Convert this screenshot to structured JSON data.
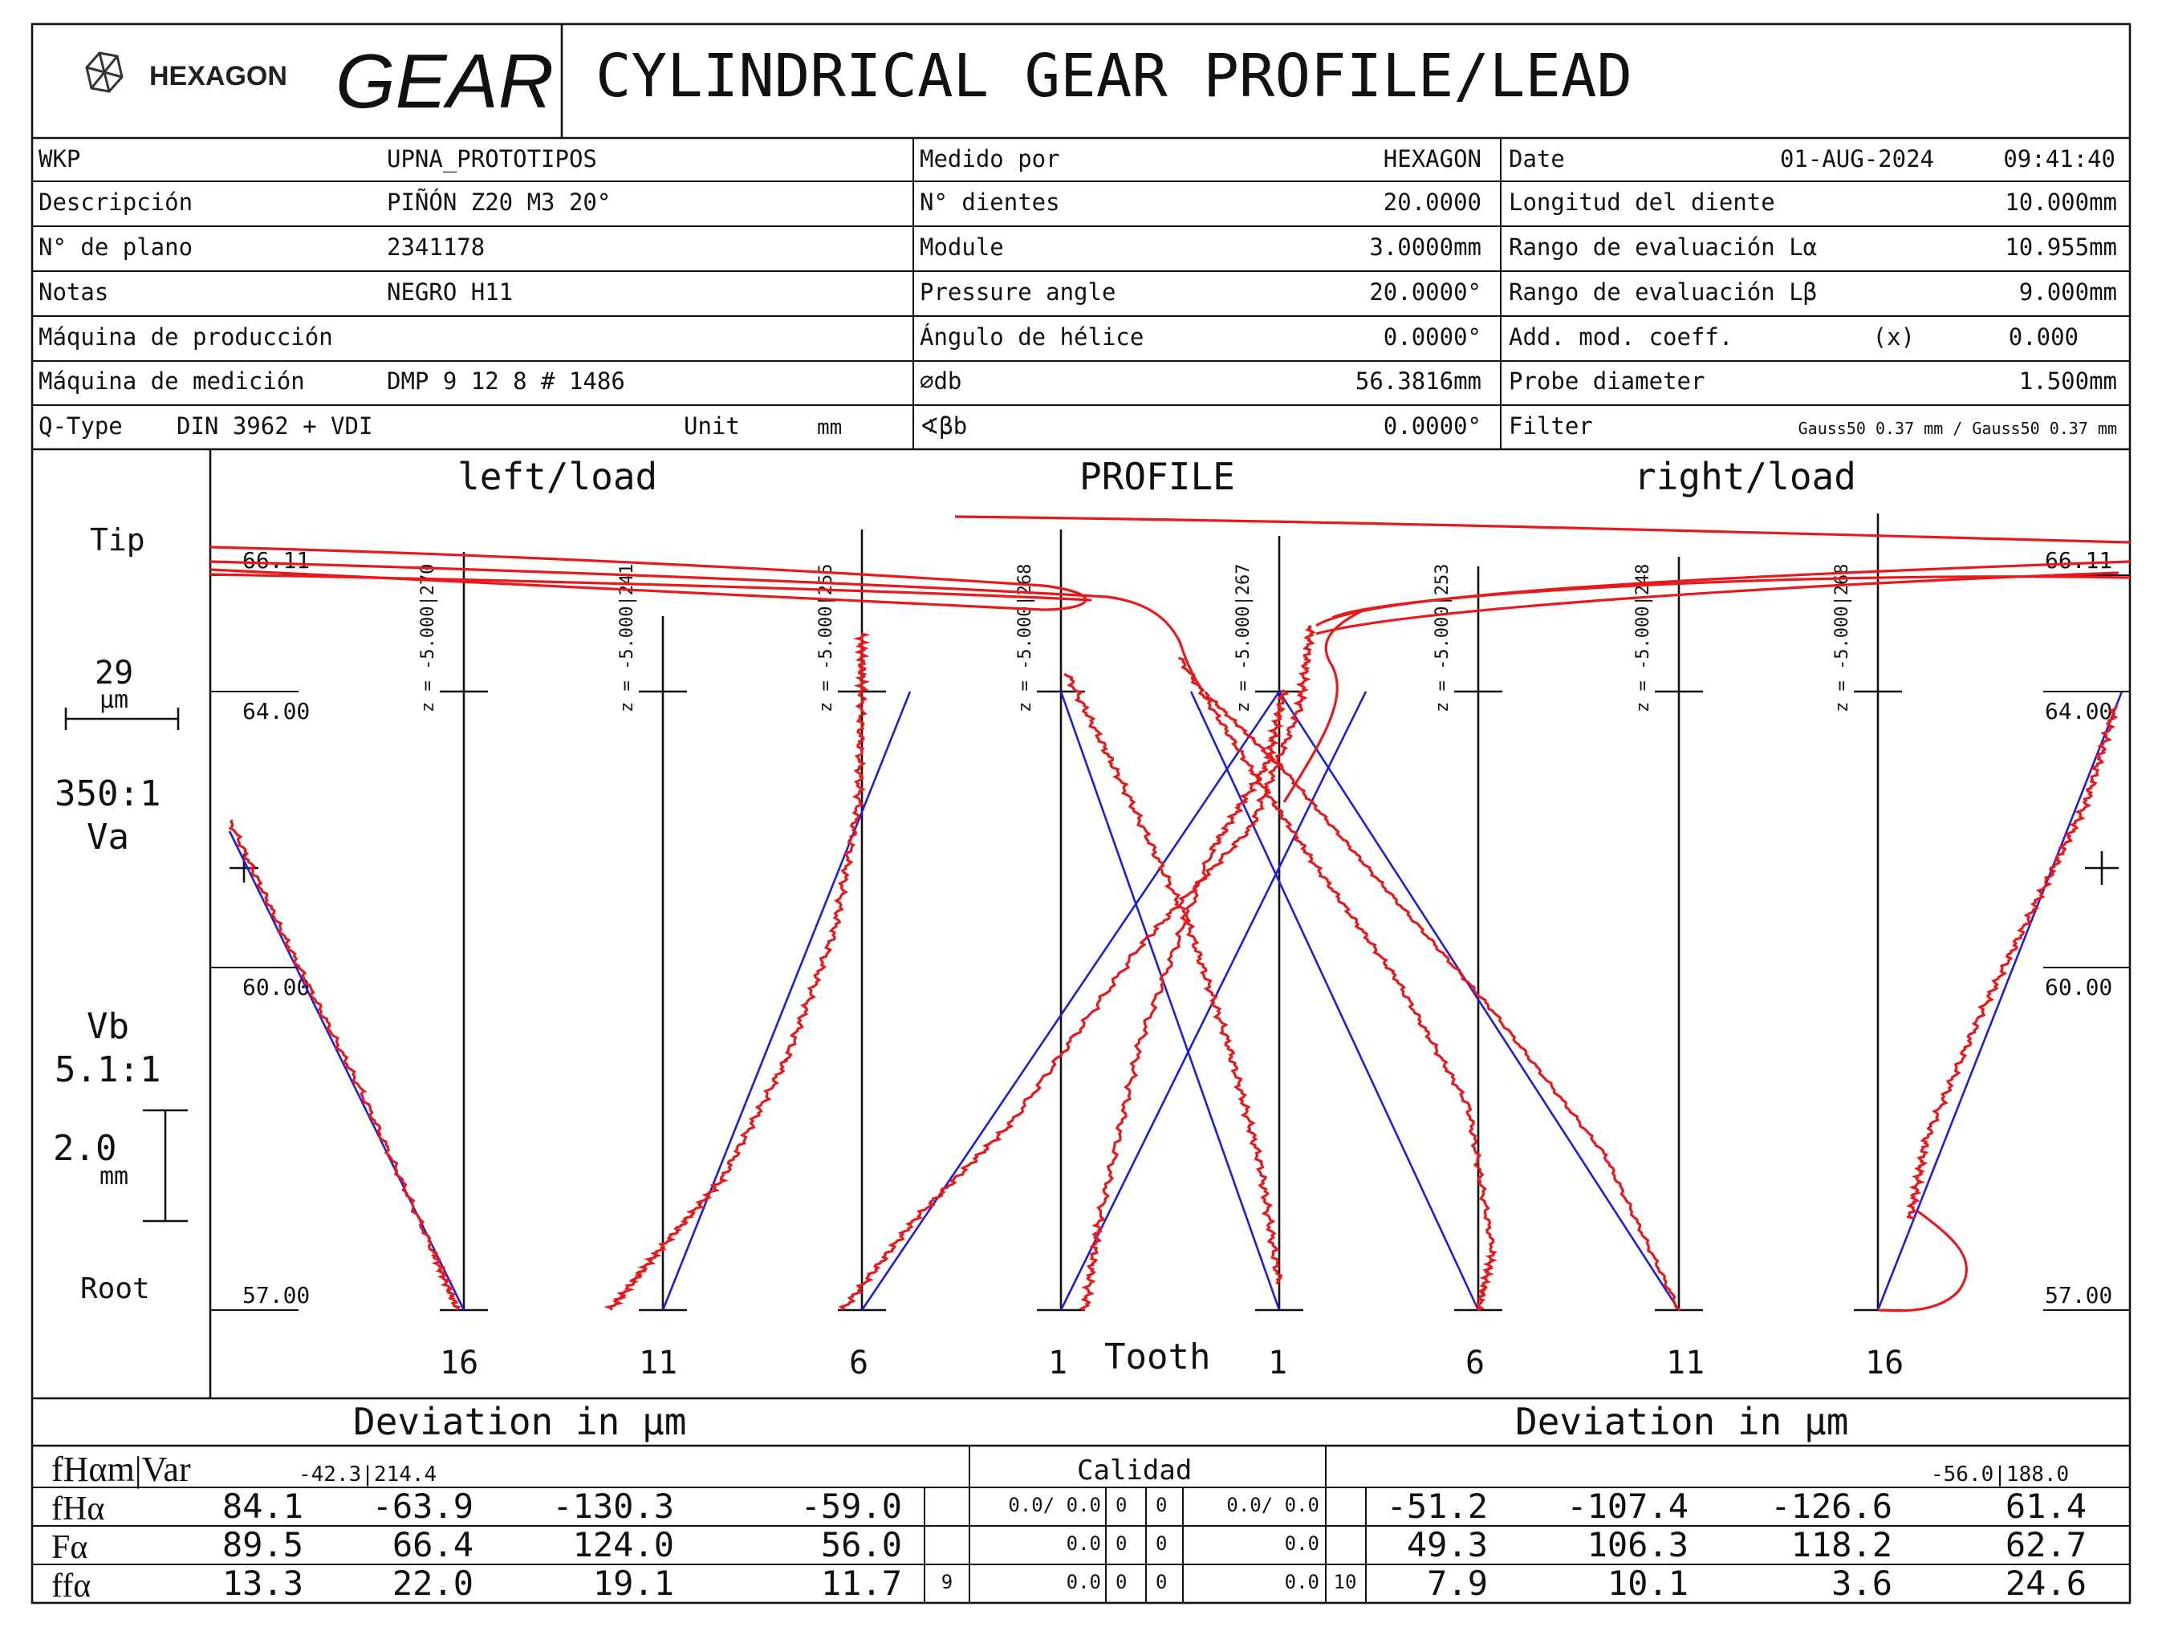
{
  "header": {
    "logo_text": "HEXAGON",
    "gear_word": "GEAR",
    "title": "CYLINDRICAL GEAR PROFILE/LEAD"
  },
  "info": {
    "col1": [
      {
        "label": "WKP",
        "value": "UPNA_PROTOTIPOS"
      },
      {
        "label": "Descripción",
        "value": "PIÑÓN Z20 M3 20°"
      },
      {
        "label": "N° de plano",
        "value": "2341178"
      },
      {
        "label": "Notas",
        "value": "NEGRO H11"
      },
      {
        "label": "Máquina de producción",
        "value": ""
      },
      {
        "label": "Máquina de medición",
        "value": "DMP  9 12  8 # 1486"
      }
    ],
    "qtype": {
      "label": "Q-Type",
      "value": "DIN 3962 + VDI",
      "unit_label": "Unit",
      "unit_value": "mm"
    },
    "col2": [
      {
        "label": "Medido por",
        "value": "HEXAGON"
      },
      {
        "label": "N° dientes",
        "value": "20.0000"
      },
      {
        "label": "Module",
        "value": "3.0000mm"
      },
      {
        "label": "Pressure angle",
        "value": "20.0000°"
      },
      {
        "label": "Ángulo de hélice",
        "value": "0.0000°"
      },
      {
        "label": "⌀db",
        "value": "56.3816mm"
      },
      {
        "label": "∢βb",
        "value": "0.0000°"
      }
    ],
    "col3": [
      {
        "label": "Date",
        "value": "01-AUG-2024",
        "extra": "09:41:40"
      },
      {
        "label": "Longitud del diente",
        "value": "10.000mm"
      },
      {
        "label": "Rango de evaluación Lα",
        "value": "10.955mm"
      },
      {
        "label": "Rango de evaluación Lβ",
        "value": "9.000mm"
      },
      {
        "label": "Add. mod. coeff.",
        "value": "0.000",
        "extra": "(x)"
      },
      {
        "label": "Probe diameter",
        "value": "1.500mm"
      },
      {
        "label": "Filter",
        "value": "Gauss50 0.37 mm / Gauss50 0.37 mm"
      }
    ]
  },
  "plot": {
    "left_title": "left/load",
    "center_title": "PROFILE",
    "right_title": "right/load",
    "tip_label": "Tip",
    "root_label": "Root",
    "scale_um": "29",
    "scale_um_unit": "µm",
    "scale_va_ratio": "350:1",
    "scale_va": "Va",
    "scale_vb": "Vb",
    "scale_vb_ratio": "5.1:1",
    "scale_mm": "2.0",
    "scale_mm_unit": "mm",
    "diam_labels": [
      "66.11",
      "64.00",
      "60.00",
      "57.00"
    ],
    "tooth_word": "Tooth",
    "left_teeth": [
      "16",
      "11",
      "6",
      "1"
    ],
    "right_teeth": [
      "1",
      "6",
      "11",
      "16"
    ],
    "left_z": [
      "z = -5.000|270",
      "z = -5.000|241",
      "z = -5.000|255",
      "z = -5.000|268"
    ],
    "right_z": [
      "z = -5.000|267",
      "z = -5.000|253",
      "z = -5.000|248",
      "z = -5.000|268"
    ]
  },
  "deviation": {
    "left_title": "Deviation in µm",
    "right_title": "Deviation in µm",
    "calidad_title": "Calidad",
    "var_label": "fHαm|Var",
    "left_var": "-42.3|214.4",
    "right_var": "-56.0|188.0",
    "rows": [
      {
        "label": "fHα",
        "left": [
          "84.1",
          "-63.9",
          "-130.3",
          "-59.0"
        ],
        "q_left": "",
        "cal": [
          "0.0/ 0.0",
          "0",
          "0",
          "0.0/ 0.0"
        ],
        "q_right": "",
        "right": [
          "-51.2",
          "-107.4",
          "-126.6",
          "61.4"
        ]
      },
      {
        "label": "Fα",
        "left": [
          "89.5",
          "66.4",
          "124.0",
          "56.0"
        ],
        "q_left": "",
        "cal": [
          "0.0",
          "0",
          "0",
          "0.0"
        ],
        "q_right": "",
        "right": [
          "49.3",
          "106.3",
          "118.2",
          "62.7"
        ]
      },
      {
        "label": "ffα",
        "left": [
          "13.3",
          "22.0",
          "19.1",
          "11.7"
        ],
        "q_left": "9",
        "cal": [
          "0.0",
          "0",
          "0",
          "0.0"
        ],
        "q_right": "10",
        "right": [
          "7.9",
          "10.1",
          "3.6",
          "24.6"
        ]
      }
    ]
  }
}
